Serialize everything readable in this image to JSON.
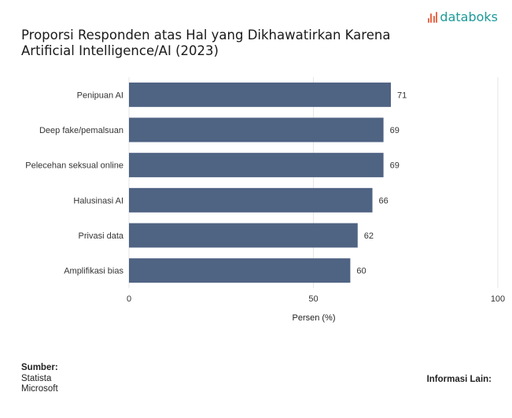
{
  "brand": {
    "name": "databoks",
    "icon": "databoks-logo-icon",
    "color": "#1d9a9a",
    "icon_color": "#e8684a"
  },
  "title": "Proporsi Responden atas Hal yang Dikhawatirkan Karena Artificial Intelligence/AI (2023)",
  "chart_data": {
    "type": "bar",
    "orientation": "horizontal",
    "categories": [
      "Penipuan AI",
      "Deep fake/pemalsuan",
      "Pelecehan seksual online",
      "Halusinasi AI",
      "Privasi data",
      "Amplifikasi bias"
    ],
    "values": [
      71,
      69,
      69,
      66,
      62,
      60
    ],
    "xlabel": "Persen (%)",
    "ylabel": "",
    "xlim": [
      0,
      100
    ],
    "xticks": [
      0,
      50,
      100
    ],
    "grid": true,
    "bar_color": "#4f6383",
    "data_labels": true
  },
  "footer": {
    "source_label": "Sumber:",
    "sources": [
      "Statista",
      "Microsoft"
    ],
    "info_label": "Informasi Lain:"
  }
}
